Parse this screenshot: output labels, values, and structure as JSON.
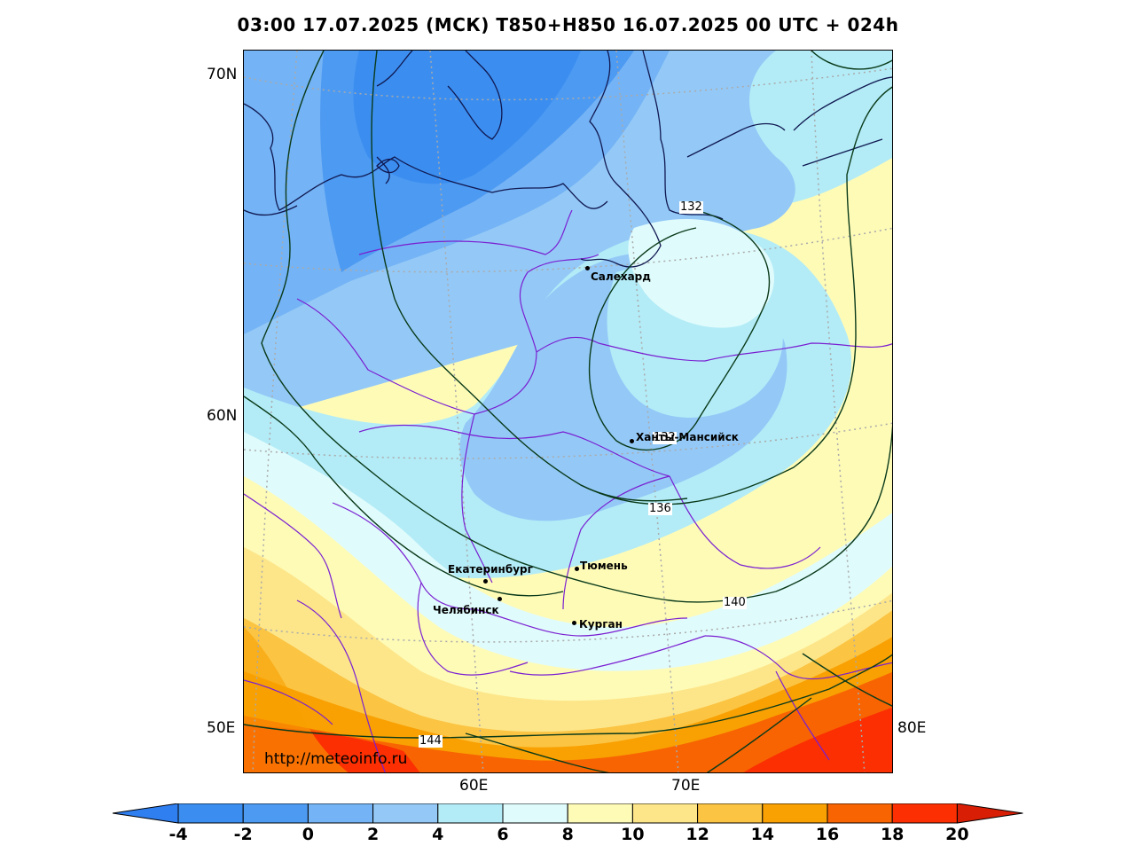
{
  "title": "03:00 17.07.2025 (МСК) T850+H850 16.07.2025 00 UTC + 024h",
  "axes": {
    "lat_labels": [
      "70N",
      "60N",
      "50E"
    ],
    "lon_labels": [
      "60E",
      "70E",
      "80E"
    ]
  },
  "cities": [
    {
      "name": "Салехард"
    },
    {
      "name": "Ханты-Мансийск"
    },
    {
      "name": "Екатеринбург"
    },
    {
      "name": "Тюмень"
    },
    {
      "name": "Челябинск"
    },
    {
      "name": "Курган"
    }
  ],
  "contour_labels": [
    "132",
    "132",
    "136",
    "140",
    "144"
  ],
  "source_url": "http://meteoinfo.ru",
  "colorbar": {
    "ticks": [
      "-4",
      "-2",
      "0",
      "2",
      "4",
      "6",
      "8",
      "10",
      "12",
      "14",
      "16",
      "18",
      "20"
    ],
    "colors": [
      "#2f7ff0",
      "#3b8ef0",
      "#4d9af2",
      "#74b3f5",
      "#94c9f7",
      "#b3ecf7",
      "#e0fbfc",
      "#fefbb7",
      "#fde68a",
      "#fbc443",
      "#f9a002",
      "#f86402",
      "#fb2f02",
      "#d81e05"
    ]
  }
}
